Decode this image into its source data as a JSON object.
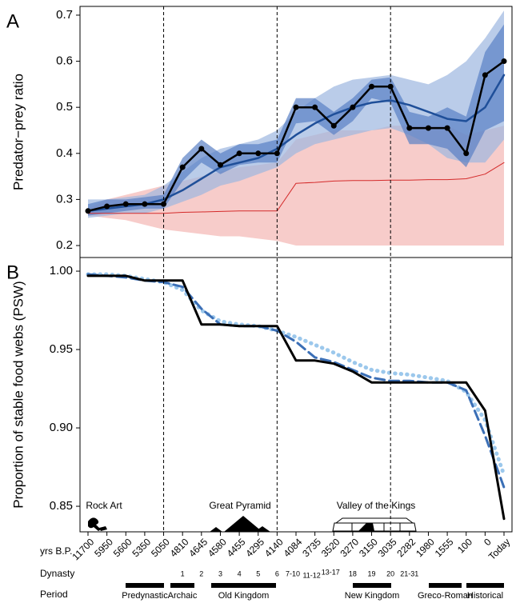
{
  "chart_data": [
    {
      "type": "line",
      "panel_label": "A",
      "ylabel": "Predator−prey ratio",
      "ylim": [
        0.174,
        0.719
      ],
      "yticks": [
        0.2,
        0.3,
        0.4,
        0.5,
        0.6,
        0.7
      ],
      "bands": [
        {
          "color": "#f4b6b4",
          "upper": [
            0.28,
            0.3,
            0.31,
            0.32,
            0.33,
            0.34,
            0.35,
            0.36,
            0.37,
            0.375,
            0.38,
            0.43,
            0.44,
            0.45,
            0.45,
            0.45,
            0.46,
            0.46,
            0.46,
            0.46,
            0.44,
            0.45,
            0.46
          ],
          "lower": [
            0.265,
            0.26,
            0.255,
            0.245,
            0.235,
            0.23,
            0.225,
            0.22,
            0.22,
            0.215,
            0.21,
            0.2,
            0.2,
            0.2,
            0.2,
            0.2,
            0.2,
            0.2,
            0.2,
            0.2,
            0.2,
            0.2,
            0.2
          ]
        },
        {
          "color": "#9db6df",
          "upper": [
            0.3,
            0.3,
            0.305,
            0.31,
            0.33,
            0.36,
            0.39,
            0.41,
            0.42,
            0.43,
            0.45,
            0.49,
            0.52,
            0.545,
            0.56,
            0.565,
            0.57,
            0.56,
            0.55,
            0.57,
            0.6,
            0.65,
            0.71
          ],
          "lower": [
            0.26,
            0.265,
            0.27,
            0.27,
            0.28,
            0.295,
            0.31,
            0.33,
            0.34,
            0.355,
            0.37,
            0.4,
            0.42,
            0.43,
            0.44,
            0.45,
            0.455,
            0.44,
            0.42,
            0.39,
            0.38,
            0.38,
            0.43
          ]
        },
        {
          "color": "#5a80c4",
          "upper": [
            0.29,
            0.3,
            0.3,
            0.305,
            0.31,
            0.39,
            0.43,
            0.4,
            0.42,
            0.42,
            0.43,
            0.52,
            0.52,
            0.49,
            0.52,
            0.56,
            0.565,
            0.49,
            0.48,
            0.5,
            0.48,
            0.62,
            0.68
          ],
          "lower": [
            0.265,
            0.27,
            0.275,
            0.28,
            0.28,
            0.34,
            0.38,
            0.355,
            0.375,
            0.38,
            0.38,
            0.465,
            0.47,
            0.44,
            0.47,
            0.52,
            0.51,
            0.42,
            0.42,
            0.41,
            0.37,
            0.45,
            0.47
          ]
        }
      ],
      "series": [
        {
          "color": "#d42a2a",
          "width": 1,
          "values": [
            0.27,
            0.27,
            0.27,
            0.27,
            0.27,
            0.272,
            0.273,
            0.274,
            0.275,
            0.275,
            0.275,
            0.335,
            0.337,
            0.34,
            0.341,
            0.341,
            0.342,
            0.342,
            0.343,
            0.343,
            0.345,
            0.355,
            0.38
          ]
        },
        {
          "color": "#1f4f99",
          "width": 2.5,
          "values": [
            0.275,
            0.28,
            0.285,
            0.29,
            0.3,
            0.32,
            0.345,
            0.37,
            0.38,
            0.39,
            0.41,
            0.44,
            0.465,
            0.485,
            0.5,
            0.51,
            0.515,
            0.505,
            0.49,
            0.475,
            0.47,
            0.5,
            0.57
          ]
        },
        {
          "color": "#000000",
          "width": 2.5,
          "markers": true,
          "values": [
            0.275,
            0.285,
            0.29,
            0.29,
            0.29,
            0.37,
            0.41,
            0.375,
            0.4,
            0.4,
            0.4,
            0.5,
            0.5,
            0.46,
            0.5,
            0.545,
            0.545,
            0.455,
            0.455,
            0.455,
            0.4,
            0.57,
            0.6
          ]
        }
      ]
    },
    {
      "type": "line",
      "panel_label": "B",
      "ylabel": "Proportion of stable food webs (PSW)",
      "xlabel": "yrs B.P.",
      "categories": [
        "11700",
        "5950",
        "5600",
        "5350",
        "5050",
        "4810",
        "4645",
        "4580",
        "4455",
        "4295",
        "4140",
        "4084",
        "3735",
        "3520",
        "3270",
        "3150",
        "3035",
        "2282",
        "1980",
        "1555",
        "100",
        "0",
        "Today"
      ],
      "ylim": [
        0.8337,
        1.0087
      ],
      "yticks": [
        {
          "value": 0.85,
          "label": "0.85"
        },
        {
          "value": 0.9,
          "label": "0.90"
        },
        {
          "value": 0.95,
          "label": "0.95"
        },
        {
          "value": 1.0,
          "label": "1.00"
        }
      ],
      "series": [
        {
          "color": "#9cc8ec",
          "width": 5,
          "dash": "dotted",
          "values": [
            0.998,
            0.998,
            0.997,
            0.995,
            0.993,
            0.988,
            0.975,
            0.968,
            0.966,
            0.965,
            0.962,
            0.958,
            0.953,
            0.948,
            0.942,
            0.937,
            0.935,
            0.934,
            0.932,
            0.93,
            0.923,
            0.905,
            0.87
          ]
        },
        {
          "color": "#3b6fb6",
          "width": 3,
          "dash": "dashed",
          "values": [
            0.998,
            0.997,
            0.996,
            0.994,
            0.993,
            0.99,
            0.976,
            0.966,
            0.965,
            0.965,
            0.962,
            0.955,
            0.945,
            0.942,
            0.937,
            0.932,
            0.93,
            0.93,
            0.929,
            0.929,
            0.924,
            0.895,
            0.862
          ]
        },
        {
          "color": "#000000",
          "width": 3,
          "dash": "solid",
          "values": [
            0.997,
            0.997,
            0.997,
            0.994,
            0.994,
            0.994,
            0.966,
            0.966,
            0.965,
            0.965,
            0.965,
            0.943,
            0.943,
            0.941,
            0.936,
            0.929,
            0.929,
            0.929,
            0.929,
            0.929,
            0.929,
            0.911,
            0.842
          ]
        }
      ],
      "annotations": [
        "Rock Art",
        "Great Pyramid",
        "Valley of the Kings"
      ]
    }
  ],
  "dynasty": {
    "label": "Dynasty",
    "items": [
      "1",
      "2",
      "3",
      "4",
      "5",
      "6",
      "7-10",
      "11-12",
      "13-17",
      "18",
      "19",
      "20",
      "21-31"
    ]
  },
  "period": {
    "label": "Period",
    "items": [
      "Predynastic",
      "Archaic",
      "Old Kingdom",
      "New Kingdom",
      "Greco-Roman",
      "Historical"
    ]
  }
}
